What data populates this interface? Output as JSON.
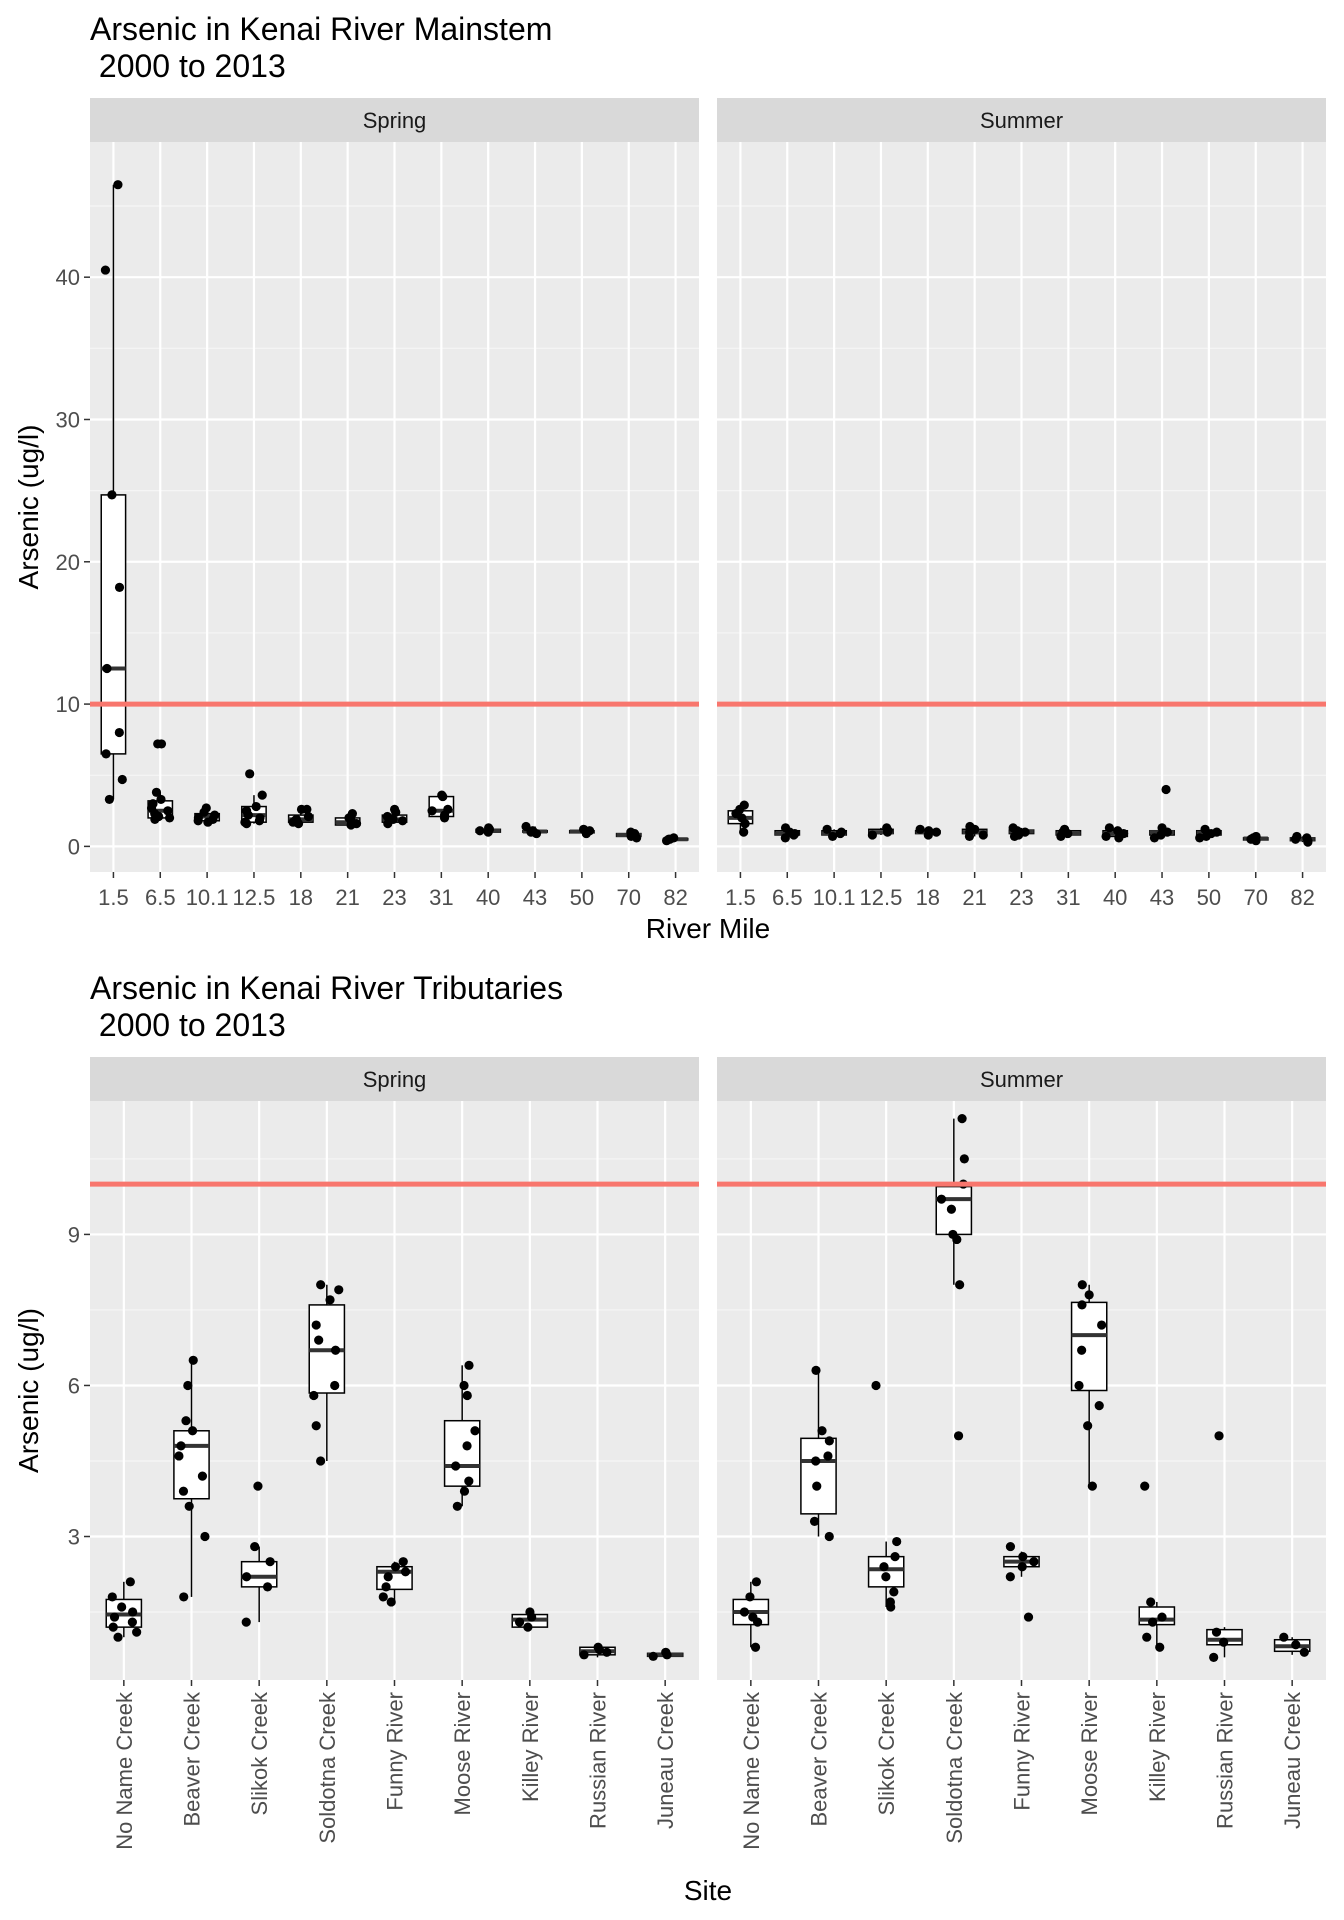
{
  "chart_data": [
    {
      "type": "boxplot",
      "title": "Arsenic in Kenai River Mainstem\n 2000 to 2013",
      "xlabel": "River Mile",
      "ylabel": "Arsenic (ug/l)",
      "ylim": [
        -1.8,
        49.5
      ],
      "yticks": [
        0,
        10,
        20,
        30,
        40
      ],
      "reference_line": 10,
      "reference_color": "#f8766d",
      "categories": [
        "1.5",
        "6.5",
        "10.1",
        "12.5",
        "18",
        "21",
        "23",
        "31",
        "40",
        "43",
        "50",
        "70",
        "82"
      ],
      "panels": [
        {
          "name": "Spring",
          "boxes": [
            {
              "q1": 6.5,
              "median": 12.5,
              "q3": 24.7,
              "low": 3.3,
              "high": 46.5,
              "points": [
                46.5,
                40.5,
                24.7,
                18.2,
                12.5,
                8.0,
                6.5,
                4.7,
                3.3
              ]
            },
            {
              "q1": 2.0,
              "median": 2.5,
              "q3": 3.2,
              "low": 1.9,
              "high": 3.8,
              "points": [
                7.2,
                7.2,
                3.8,
                3.3,
                3.0,
                2.7,
                2.5,
                2.3,
                2.1,
                2.0,
                1.9
              ]
            },
            {
              "q1": 1.8,
              "median": 2.1,
              "q3": 2.3,
              "low": 1.7,
              "high": 2.7,
              "points": [
                2.7,
                2.4,
                2.2,
                2.0,
                1.9,
                1.8,
                1.7
              ]
            },
            {
              "q1": 1.7,
              "median": 2.2,
              "q3": 2.8,
              "low": 1.6,
              "high": 3.6,
              "points": [
                5.1,
                3.6,
                2.8,
                2.5,
                2.2,
                2.0,
                1.8,
                1.7,
                1.6
              ]
            },
            {
              "q1": 1.7,
              "median": 1.9,
              "q3": 2.2,
              "low": 1.6,
              "high": 2.6,
              "points": [
                2.6,
                2.6,
                2.1,
                1.9,
                1.8,
                1.7,
                1.6
              ]
            },
            {
              "q1": 1.5,
              "median": 1.7,
              "q3": 2.0,
              "low": 1.4,
              "high": 2.3,
              "points": [
                2.3,
                2.0,
                1.8,
                1.6,
                1.5
              ]
            },
            {
              "q1": 1.7,
              "median": 1.9,
              "q3": 2.2,
              "low": 1.6,
              "high": 2.6,
              "points": [
                2.6,
                2.4,
                2.1,
                1.9,
                1.8,
                1.6
              ]
            },
            {
              "q1": 2.1,
              "median": 2.5,
              "q3": 3.5,
              "low": 2.0,
              "high": 3.6,
              "points": [
                3.6,
                3.5,
                2.6,
                2.5,
                2.2,
                2.0
              ]
            },
            {
              "q1": 1.0,
              "median": 1.1,
              "q3": 1.2,
              "low": 1.0,
              "high": 1.3,
              "points": [
                1.3,
                1.2,
                1.1,
                1.0
              ]
            },
            {
              "q1": 1.0,
              "median": 1.05,
              "q3": 1.1,
              "low": 0.9,
              "high": 1.4,
              "points": [
                1.4,
                1.1,
                1.0,
                0.9
              ]
            },
            {
              "q1": 0.95,
              "median": 1.05,
              "q3": 1.1,
              "low": 0.9,
              "high": 1.2,
              "points": [
                1.2,
                1.1,
                1.0,
                0.9
              ]
            },
            {
              "q1": 0.7,
              "median": 0.8,
              "q3": 0.9,
              "low": 0.6,
              "high": 1.0,
              "points": [
                1.0,
                0.9,
                0.8,
                0.7,
                0.6
              ]
            },
            {
              "q1": 0.45,
              "median": 0.5,
              "q3": 0.55,
              "low": 0.4,
              "high": 0.6,
              "points": [
                0.6,
                0.5,
                0.5,
                0.4
              ]
            }
          ]
        },
        {
          "name": "Summer",
          "boxes": [
            {
              "q1": 1.6,
              "median": 2.0,
              "q3": 2.5,
              "low": 1.0,
              "high": 2.9,
              "points": [
                2.9,
                2.6,
                2.3,
                2.0,
                1.6,
                1.0
              ]
            },
            {
              "q1": 0.8,
              "median": 0.9,
              "q3": 1.1,
              "low": 0.6,
              "high": 1.3,
              "points": [
                1.3,
                1.0,
                0.9,
                0.8,
                0.6
              ]
            },
            {
              "q1": 0.8,
              "median": 0.9,
              "q3": 1.1,
              "low": 0.7,
              "high": 1.2,
              "points": [
                1.2,
                1.0,
                0.9,
                0.7
              ]
            },
            {
              "q1": 0.9,
              "median": 1.0,
              "q3": 1.2,
              "low": 0.8,
              "high": 1.3,
              "points": [
                1.3,
                1.1,
                1.0,
                0.8
              ]
            },
            {
              "q1": 0.9,
              "median": 1.0,
              "q3": 1.1,
              "low": 0.8,
              "high": 1.2,
              "points": [
                1.2,
                1.1,
                1.0,
                0.8
              ]
            },
            {
              "q1": 0.9,
              "median": 1.0,
              "q3": 1.2,
              "low": 0.7,
              "high": 1.4,
              "points": [
                1.4,
                1.2,
                1.0,
                0.8,
                0.7
              ]
            },
            {
              "q1": 0.9,
              "median": 1.05,
              "q3": 1.15,
              "low": 0.7,
              "high": 1.3,
              "points": [
                1.3,
                1.1,
                1.0,
                0.8,
                0.7
              ]
            },
            {
              "q1": 0.8,
              "median": 0.9,
              "q3": 1.1,
              "low": 0.7,
              "high": 1.2,
              "points": [
                1.2,
                1.0,
                0.9,
                0.7
              ]
            },
            {
              "q1": 0.7,
              "median": 0.9,
              "q3": 1.1,
              "low": 0.6,
              "high": 1.3,
              "points": [
                1.3,
                1.1,
                0.9,
                0.7,
                0.6
              ]
            },
            {
              "q1": 0.8,
              "median": 1.0,
              "q3": 1.1,
              "low": 0.6,
              "high": 1.3,
              "points": [
                4.0,
                1.3,
                1.0,
                0.8,
                0.6
              ]
            },
            {
              "q1": 0.8,
              "median": 0.95,
              "q3": 1.1,
              "low": 0.6,
              "high": 1.2,
              "points": [
                1.2,
                1.0,
                0.9,
                0.7,
                0.6
              ]
            },
            {
              "q1": 0.45,
              "median": 0.55,
              "q3": 0.6,
              "low": 0.4,
              "high": 0.7,
              "points": [
                0.7,
                0.6,
                0.5,
                0.4
              ]
            },
            {
              "q1": 0.4,
              "median": 0.5,
              "q3": 0.6,
              "low": 0.3,
              "high": 0.7,
              "points": [
                0.7,
                0.6,
                0.5,
                0.4,
                0.3
              ]
            }
          ]
        }
      ]
    },
    {
      "type": "boxplot",
      "title": "Arsenic in Kenai River Tributaries\n 2000 to 2013",
      "xlabel": "Site",
      "ylabel": "Arsenic (ug/l)",
      "ylim": [
        0.15,
        11.65
      ],
      "yticks": [
        3,
        6,
        9
      ],
      "reference_line": 10,
      "reference_color": "#f8766d",
      "categories": [
        "No Name Creek",
        "Beaver Creek",
        "Slikok Creek",
        "Soldotna Creek",
        "Funny River",
        "Moose River",
        "Killey River",
        "Russian River",
        "Juneau Creek"
      ],
      "panels": [
        {
          "name": "Spring",
          "boxes": [
            {
              "q1": 1.2,
              "median": 1.45,
              "q3": 1.75,
              "low": 1.0,
              "high": 2.1,
              "points": [
                2.1,
                1.8,
                1.6,
                1.5,
                1.4,
                1.3,
                1.2,
                1.1,
                1.0
              ]
            },
            {
              "q1": 3.75,
              "median": 4.8,
              "q3": 5.1,
              "low": 1.8,
              "high": 6.5,
              "points": [
                6.5,
                6.0,
                5.3,
                5.1,
                4.8,
                4.6,
                4.2,
                3.9,
                3.6,
                3.0,
                1.8
              ]
            },
            {
              "q1": 2.0,
              "median": 2.2,
              "q3": 2.5,
              "low": 1.3,
              "high": 2.8,
              "points": [
                4.0,
                2.8,
                2.5,
                2.2,
                2.0,
                1.3
              ]
            },
            {
              "q1": 5.85,
              "median": 6.7,
              "q3": 7.6,
              "low": 4.5,
              "high": 8.0,
              "points": [
                8.0,
                7.9,
                7.7,
                7.2,
                6.9,
                6.7,
                6.0,
                5.8,
                5.2,
                4.5
              ]
            },
            {
              "q1": 1.95,
              "median": 2.3,
              "q3": 2.4,
              "low": 1.7,
              "high": 2.5,
              "points": [
                2.5,
                2.4,
                2.3,
                2.2,
                2.0,
                1.8,
                1.7
              ]
            },
            {
              "q1": 4.0,
              "median": 4.4,
              "q3": 5.3,
              "low": 3.6,
              "high": 6.4,
              "points": [
                6.4,
                6.0,
                5.8,
                5.1,
                4.8,
                4.4,
                4.1,
                3.9,
                3.6
              ]
            },
            {
              "q1": 1.2,
              "median": 1.35,
              "q3": 1.45,
              "low": 1.15,
              "high": 1.5,
              "points": [
                1.5,
                1.4,
                1.3,
                1.2
              ]
            },
            {
              "q1": 0.65,
              "median": 0.72,
              "q3": 0.8,
              "low": 0.6,
              "high": 0.82,
              "points": [
                0.8,
                0.75,
                0.7,
                0.65
              ]
            },
            {
              "q1": 0.62,
              "median": 0.65,
              "q3": 0.68,
              "low": 0.6,
              "high": 0.7,
              "points": [
                0.7,
                0.65,
                0.62
              ]
            }
          ]
        },
        {
          "name": "Summer",
          "boxes": [
            {
              "q1": 1.25,
              "median": 1.5,
              "q3": 1.75,
              "low": 0.8,
              "high": 2.1,
              "points": [
                2.1,
                1.8,
                1.5,
                1.4,
                1.3,
                0.8
              ]
            },
            {
              "q1": 3.45,
              "median": 4.5,
              "q3": 4.95,
              "low": 3.0,
              "high": 6.3,
              "points": [
                6.3,
                5.1,
                4.9,
                4.6,
                4.5,
                4.0,
                3.3,
                3.0
              ]
            },
            {
              "q1": 2.0,
              "median": 2.35,
              "q3": 2.6,
              "low": 1.6,
              "high": 2.9,
              "points": [
                6.0,
                2.9,
                2.6,
                2.4,
                2.2,
                1.9,
                1.7,
                1.6
              ]
            },
            {
              "q1": 9.0,
              "median": 9.7,
              "q3": 9.95,
              "low": 8.0,
              "high": 11.3,
              "points": [
                11.3,
                10.5,
                10.0,
                9.7,
                9.5,
                9.0,
                8.9,
                8.0,
                5.0
              ]
            },
            {
              "q1": 2.4,
              "median": 2.5,
              "q3": 2.6,
              "low": 2.2,
              "high": 2.7,
              "points": [
                2.8,
                2.6,
                2.5,
                2.4,
                2.2,
                1.4
              ]
            },
            {
              "q1": 5.9,
              "median": 7.0,
              "q3": 7.65,
              "low": 4.0,
              "high": 8.0,
              "points": [
                8.0,
                7.8,
                7.6,
                7.2,
                6.7,
                6.0,
                5.6,
                5.2,
                4.0
              ]
            },
            {
              "q1": 1.25,
              "median": 1.35,
              "q3": 1.6,
              "low": 0.8,
              "high": 1.7,
              "points": [
                4.0,
                1.7,
                1.4,
                1.3,
                1.0,
                0.8
              ]
            },
            {
              "q1": 0.85,
              "median": 0.95,
              "q3": 1.15,
              "low": 0.6,
              "high": 1.2,
              "points": [
                5.0,
                1.1,
                0.9,
                0.6
              ]
            },
            {
              "q1": 0.72,
              "median": 0.82,
              "q3": 0.95,
              "low": 0.65,
              "high": 1.0,
              "points": [
                1.0,
                0.85,
                0.7
              ]
            }
          ]
        }
      ]
    }
  ]
}
